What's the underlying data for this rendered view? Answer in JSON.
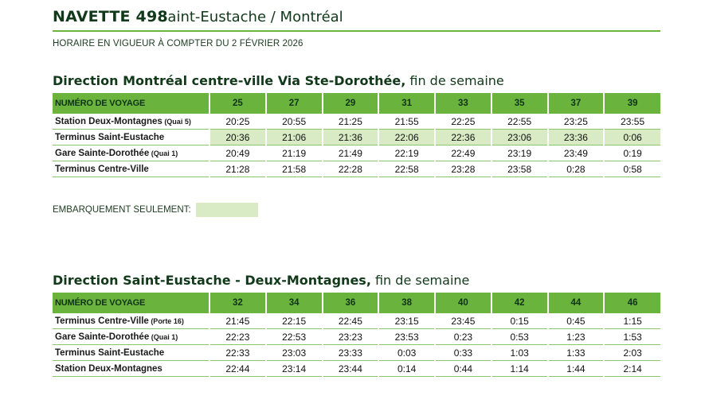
{
  "header": {
    "route_number": "NAVETTE 498",
    "route_name": "Saint-Eustache / Montréal",
    "effective_date": "HORAIRE EN VIGUEUR À COMPTER DU 2 FÉVRIER 2026"
  },
  "legend": {
    "label": "EMBARQUEMENT SEULEMENT:",
    "color": "#d9ebc4"
  },
  "colors": {
    "accent": "#6ab43e",
    "highlight": "#d9ebc4",
    "title": "#11391a"
  },
  "sections": [
    {
      "title_bold": "Direction Montréal centre-ville Via Ste-Dorothée,",
      "title_light": " fin de semaine",
      "header_label": "NUMÉRO DE VOYAGE",
      "trips": [
        "25",
        "27",
        "29",
        "31",
        "33",
        "35",
        "37",
        "39"
      ],
      "stops": [
        {
          "name": "Station Deux-Montagnes",
          "note": " (Quai 5)",
          "boarding": false,
          "times": [
            "20:25",
            "20:55",
            "21:25",
            "21:55",
            "22:25",
            "22:55",
            "23:25",
            "23:55"
          ]
        },
        {
          "name": "Terminus Saint-Eustache",
          "note": "",
          "boarding": true,
          "times": [
            "20:36",
            "21:06",
            "21:36",
            "22:06",
            "22:36",
            "23:06",
            "23:36",
            "0:06"
          ]
        },
        {
          "name": "Gare Sainte-Dorothée",
          "note": " (Quai 1)",
          "boarding": false,
          "times": [
            "20:49",
            "21:19",
            "21:49",
            "22:19",
            "22:49",
            "23:19",
            "23:49",
            "0:19"
          ]
        },
        {
          "name": "Terminus Centre-Ville",
          "note": "",
          "boarding": false,
          "times": [
            "21:28",
            "21:58",
            "22:28",
            "22:58",
            "23:28",
            "23:58",
            "0:28",
            "0:58"
          ]
        }
      ]
    },
    {
      "title_bold": "Direction Saint-Eustache - Deux-Montagnes,",
      "title_light": " fin de semaine",
      "header_label": "NUMÉRO DE VOYAGE",
      "trips": [
        "32",
        "34",
        "36",
        "38",
        "40",
        "42",
        "44",
        "46"
      ],
      "stops": [
        {
          "name": "Terminus Centre-Ville",
          "note": " (Porte 16)",
          "boarding": false,
          "times": [
            "21:45",
            "22:15",
            "22:45",
            "23:15",
            "23:45",
            "0:15",
            "0:45",
            "1:15"
          ]
        },
        {
          "name": "Gare Sainte-Dorothée",
          "note": " (Quai 1)",
          "boarding": false,
          "times": [
            "22:23",
            "22:53",
            "23:23",
            "23:53",
            "0:23",
            "0:53",
            "1:23",
            "1:53"
          ]
        },
        {
          "name": "Terminus Saint-Eustache",
          "note": "",
          "boarding": false,
          "times": [
            "22:33",
            "23:03",
            "23:33",
            "0:03",
            "0:33",
            "1:03",
            "1:33",
            "2:03"
          ]
        },
        {
          "name": "Station Deux-Montagnes",
          "note": "",
          "boarding": false,
          "times": [
            "22:44",
            "23:14",
            "23:44",
            "0:14",
            "0:44",
            "1:14",
            "1:44",
            "2:14"
          ]
        }
      ]
    }
  ]
}
